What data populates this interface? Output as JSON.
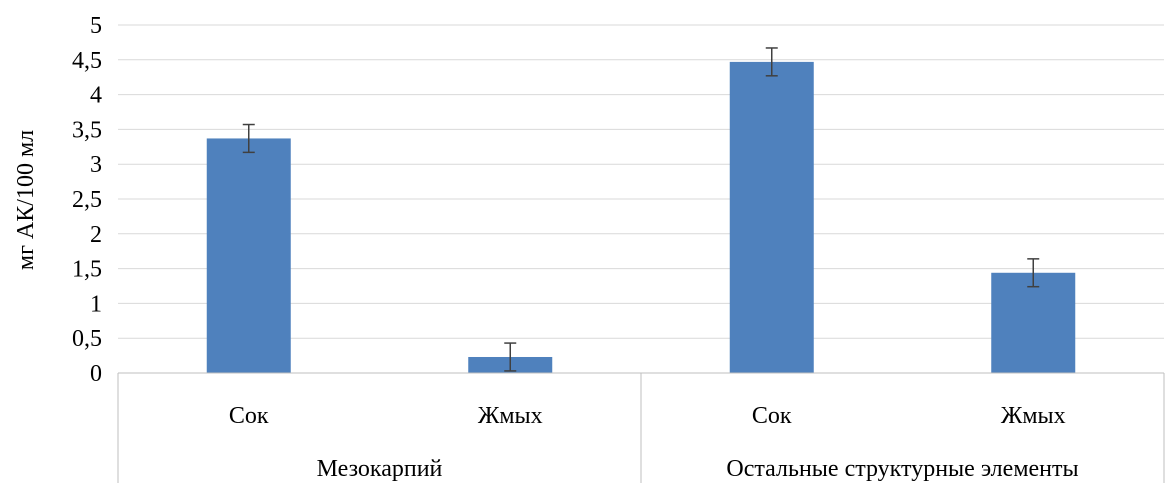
{
  "chart_data": {
    "type": "bar",
    "title": "",
    "ylabel": "мг АК/100 мл",
    "xlabel": "",
    "ylim": [
      0,
      5
    ],
    "yticks": [
      "0",
      "0,5",
      "1",
      "1,5",
      "2",
      "2,5",
      "3",
      "3,5",
      "4",
      "4,5",
      "5"
    ],
    "yticks_values": [
      0,
      0.5,
      1,
      1.5,
      2,
      2.5,
      3,
      3.5,
      4,
      4.5,
      5
    ],
    "grid": true,
    "legend": "none",
    "bar_color": "#4F81BD",
    "error_color": "#404040",
    "groups": [
      {
        "label": "Мезокарпий",
        "categories": [
          "Сок",
          "Жмых"
        ]
      },
      {
        "label": "Остальные структурные элементы",
        "categories": [
          "Сок",
          "Жмых"
        ]
      }
    ],
    "categories": [
      "Сок",
      "Жмых",
      "Сок",
      "Жмых"
    ],
    "values": [
      3.37,
      0.23,
      4.47,
      1.44
    ],
    "errors": [
      0.2,
      0.2,
      0.2,
      0.2
    ]
  }
}
